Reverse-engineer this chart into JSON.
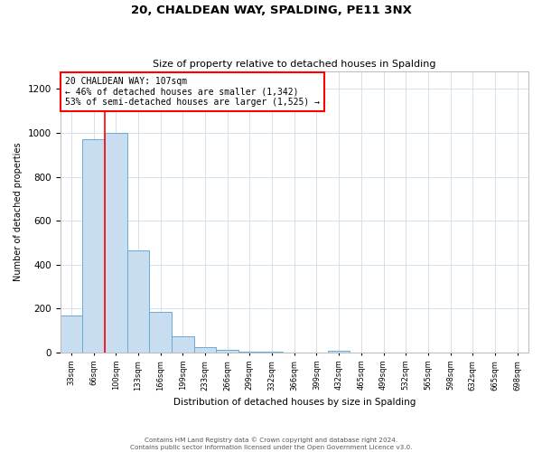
{
  "title": "20, CHALDEAN WAY, SPALDING, PE11 3NX",
  "subtitle": "Size of property relative to detached houses in Spalding",
  "xlabel": "Distribution of detached houses by size in Spalding",
  "ylabel": "Number of detached properties",
  "bar_color": "#c9ddf0",
  "bar_edge_color": "#6aaad4",
  "categories": [
    "33sqm",
    "66sqm",
    "100sqm",
    "133sqm",
    "166sqm",
    "199sqm",
    "233sqm",
    "266sqm",
    "299sqm",
    "332sqm",
    "366sqm",
    "399sqm",
    "432sqm",
    "465sqm",
    "499sqm",
    "532sqm",
    "565sqm",
    "598sqm",
    "632sqm",
    "665sqm",
    "698sqm"
  ],
  "values": [
    170,
    970,
    1000,
    465,
    185,
    75,
    25,
    13,
    5,
    3,
    2,
    0,
    10,
    0,
    0,
    0,
    0,
    0,
    0,
    0,
    0
  ],
  "vline_x_index": 1.5,
  "annotation_text": "20 CHALDEAN WAY: 107sqm\n← 46% of detached houses are smaller (1,342)\n53% of semi-detached houses are larger (1,525) →",
  "ylim": [
    0,
    1280
  ],
  "yticks": [
    0,
    200,
    400,
    600,
    800,
    1000,
    1200
  ],
  "footer_line1": "Contains HM Land Registry data © Crown copyright and database right 2024.",
  "footer_line2": "Contains public sector information licensed under the Open Government Licence v3.0."
}
